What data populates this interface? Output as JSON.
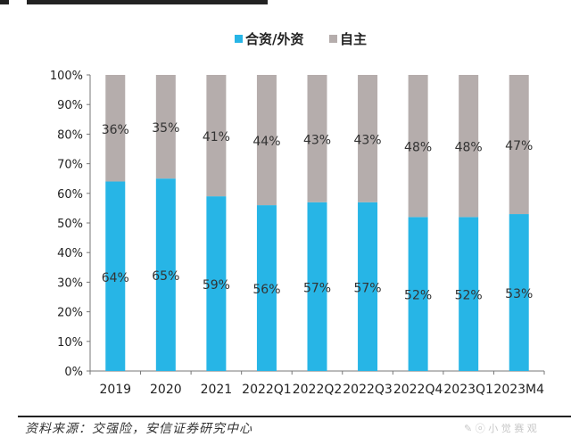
{
  "chart_data": {
    "type": "bar",
    "stacked": true,
    "percent": true,
    "title": "",
    "xlabel": "",
    "ylabel": "",
    "ylim": [
      0,
      100
    ],
    "yticks": [
      "0%",
      "10%",
      "20%",
      "30%",
      "40%",
      "50%",
      "60%",
      "70%",
      "80%",
      "90%",
      "100%"
    ],
    "categories": [
      "2019",
      "2020",
      "2021",
      "2022Q1",
      "2022Q2",
      "2022Q3",
      "2022Q4",
      "2023Q1",
      "2023M4"
    ],
    "series": [
      {
        "name": "合资/外资",
        "color": "#27b5e6",
        "values": [
          64,
          65,
          59,
          56,
          57,
          57,
          52,
          52,
          53
        ],
        "labels": [
          "64%",
          "65%",
          "59%",
          "56%",
          "57%",
          "57%",
          "52%",
          "52%",
          "53%"
        ]
      },
      {
        "name": "自主",
        "color": "#b5adac",
        "values": [
          36,
          35,
          41,
          44,
          43,
          43,
          48,
          48,
          47
        ],
        "labels": [
          "36%",
          "35%",
          "41%",
          "44%",
          "43%",
          "43%",
          "48%",
          "48%",
          "47%"
        ]
      }
    ],
    "legend_position": "top-center",
    "grid": false
  },
  "footer": {
    "source": "资料来源：交强险，安信证券研究中心"
  }
}
